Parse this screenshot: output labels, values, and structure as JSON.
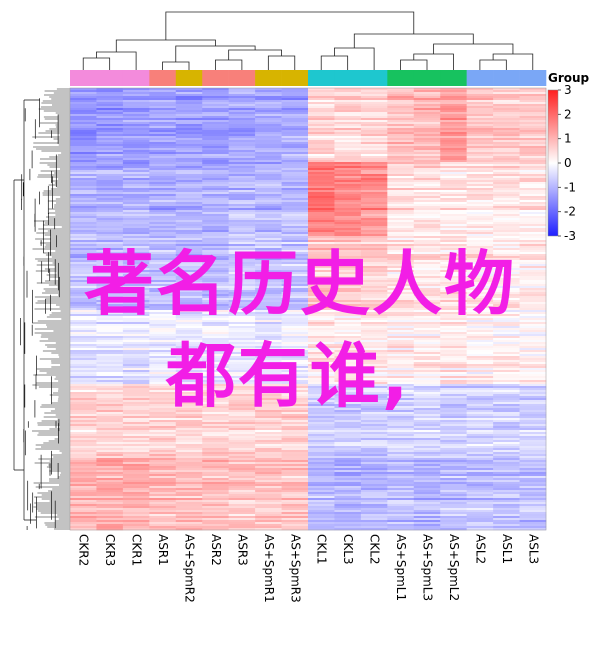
{
  "chart_data": {
    "type": "heatmap",
    "title": "",
    "columns": [
      "CKR2",
      "CKR3",
      "CKR1",
      "ASR1",
      "AS+SpmR2",
      "ASR2",
      "ASR3",
      "AS+SpmR1",
      "AS+SpmR3",
      "CKL1",
      "CKL3",
      "CKL2",
      "AS+SpmL1",
      "AS+SpmL3",
      "AS+SpmL2",
      "ASL2",
      "ASL1",
      "ASL3"
    ],
    "groups": [
      {
        "color": "#f38bdc",
        "columns": [
          "CKR2",
          "CKR3",
          "CKR1"
        ]
      },
      {
        "color": "#f8807a",
        "columns": [
          "ASR1"
        ]
      },
      {
        "color": "#d7b400",
        "columns": [
          "AS+SpmR2"
        ]
      },
      {
        "color": "#f8807a",
        "columns": [
          "ASR2",
          "ASR3"
        ]
      },
      {
        "color": "#d7b400",
        "columns": [
          "AS+SpmR1",
          "AS+SpmR3"
        ]
      },
      {
        "color": "#1ec7cf",
        "columns": [
          "CKL1",
          "CKL3",
          "CKL2"
        ]
      },
      {
        "color": "#17c25f",
        "columns": [
          "AS+SpmL1",
          "AS+SpmL3",
          "AS+SpmL2"
        ]
      },
      {
        "color": "#7aa7f6",
        "columns": [
          "ASL2",
          "ASL1",
          "ASL3"
        ]
      }
    ],
    "legend": {
      "title": "Group",
      "ticks": [
        3,
        2,
        1,
        0,
        -1,
        -2,
        -3
      ],
      "range": [
        -3,
        3
      ],
      "colors": {
        "low": "#1f1fff",
        "mid": "#ffffff",
        "high": "#ff1f1f"
      }
    },
    "row_blocks": [
      {
        "name": "block1",
        "values": [
          -1.4,
          -1.4,
          -1.4,
          -1.3,
          -1.3,
          -1.3,
          -1.2,
          -1.2,
          -1.2,
          0.6,
          0.6,
          0.6,
          0.9,
          1.0,
          1.4,
          0.8,
          0.8,
          0.8
        ]
      },
      {
        "name": "block2",
        "values": [
          -1.1,
          -1.1,
          -1.1,
          -1.1,
          -1.1,
          -1.1,
          -1.0,
          -1.0,
          -1.0,
          1.9,
          1.7,
          1.5,
          0.5,
          0.5,
          0.4,
          0.4,
          0.4,
          0.4
        ]
      },
      {
        "name": "block3",
        "values": [
          -0.9,
          -0.9,
          -0.9,
          -0.9,
          -0.9,
          -0.9,
          -0.8,
          -0.8,
          -0.8,
          0.8,
          0.7,
          0.7,
          0.4,
          0.4,
          0.4,
          0.3,
          0.3,
          0.3
        ]
      },
      {
        "name": "block4",
        "values": [
          -0.4,
          -0.4,
          -0.4,
          -0.3,
          -0.3,
          -0.3,
          -0.3,
          -0.3,
          -0.3,
          0.3,
          0.3,
          0.3,
          0.3,
          0.3,
          0.3,
          0.2,
          0.2,
          0.2
        ]
      },
      {
        "name": "block5",
        "values": [
          0.6,
          0.6,
          0.6,
          0.6,
          0.6,
          0.6,
          0.6,
          0.6,
          0.6,
          -0.7,
          -0.7,
          -0.7,
          -0.6,
          -0.6,
          -0.7,
          -0.6,
          -0.6,
          -0.6
        ]
      },
      {
        "name": "block6",
        "values": [
          1.0,
          1.1,
          1.1,
          0.9,
          0.9,
          0.9,
          0.8,
          0.8,
          0.8,
          -0.9,
          -1.0,
          -0.9,
          -0.9,
          -1.0,
          -0.9,
          -0.8,
          -0.8,
          -0.8
        ]
      }
    ],
    "xlabel": "",
    "ylabel": ""
  },
  "overlay_text": {
    "line1": "著名历史人物",
    "line2": "都有谁,"
  }
}
